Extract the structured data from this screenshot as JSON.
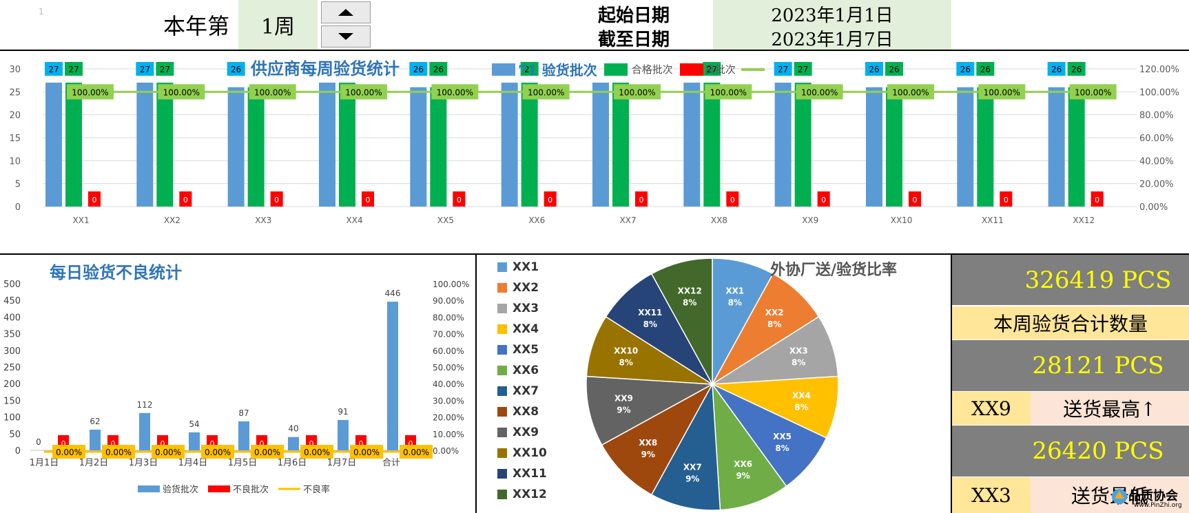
{
  "header": {
    "corner_mark": "1",
    "week_prefix": "本年第",
    "week_value": "1周",
    "start_label": "起始日期",
    "start_value": "2023年1月1日",
    "end_label": "截至日期",
    "end_value": "2023年1月7日",
    "up_icon": "triangle-up",
    "down_icon": "triangle-down"
  },
  "colors": {
    "blue": "#5b9bd5",
    "green": "#00b050",
    "red": "#ff0000",
    "line_green": "#92d050",
    "orange_line": "#ffc000",
    "title_blue": "#2e75b6",
    "kpi_gray": "#7f7f7f",
    "kpi_yellow": "#ffff00",
    "cream": "#ffe699",
    "peach": "#fce4d6"
  },
  "chart_data": [
    {
      "type": "bar",
      "title": "供应商每周验货统计",
      "categories": [
        "XX1",
        "XX2",
        "XX3",
        "XX4",
        "XX5",
        "XX6",
        "XX7",
        "XX8",
        "XX9",
        "XX10",
        "XX11",
        "XX12"
      ],
      "series": [
        {
          "name": "验货批次",
          "type": "bar",
          "values": [
            27,
            27,
            26,
            27,
            26,
            27,
            27,
            27,
            27,
            26,
            26,
            26
          ],
          "labels": [
            "27",
            "27",
            "26",
            "",
            "26",
            "",
            "",
            "",
            "27",
            "26",
            "26",
            "26"
          ]
        },
        {
          "name": "合格批次",
          "type": "bar",
          "values": [
            27,
            27,
            26,
            27,
            26,
            27,
            27,
            27,
            27,
            26,
            26,
            26
          ],
          "labels": [
            "27",
            "27",
            "",
            "",
            "26",
            "27",
            "",
            "27",
            "27",
            "26",
            "26",
            "26"
          ]
        },
        {
          "name": "不良批次",
          "type": "bar",
          "values": [
            0,
            0,
            0,
            0,
            0,
            0,
            0,
            0,
            0,
            0,
            0,
            0
          ],
          "labels": [
            "0",
            "0",
            "0",
            "0",
            "0",
            "0",
            "0",
            "0",
            "0",
            "0",
            "0",
            "0"
          ]
        },
        {
          "name": "",
          "type": "line",
          "axis": "right",
          "values": [
            1,
            1,
            1,
            1,
            1,
            1,
            1,
            1,
            1,
            1,
            1,
            1
          ],
          "labels": [
            "100.00%",
            "100.00%",
            "100.00%",
            "100.00%",
            "100.00%",
            "100.00%",
            "100.00%",
            "100.00%",
            "100.00%",
            "100.00%",
            "100.00%",
            "100.00%"
          ]
        }
      ],
      "legend_text": {
        "blue": "71 验货批次",
        "green": "合格批次",
        "red": "良批次"
      },
      "y_ticks": [
        "30",
        "25",
        "20",
        "15",
        "10",
        "5",
        "0"
      ],
      "ylim": [
        0,
        30
      ],
      "y2_ticks": [
        "120.00%",
        "100.00%",
        "80.00%",
        "60.00%",
        "40.00%",
        "20.00%",
        "0.00%"
      ],
      "y2lim": [
        0,
        1.2
      ],
      "grid": true,
      "legend_position": "top"
    },
    {
      "type": "bar",
      "title": "每日验货不良统计",
      "categories": [
        "1月1日",
        "1月2日",
        "1月3日",
        "1月4日",
        "1月5日",
        "1月6日",
        "1月7日",
        "合计"
      ],
      "series": [
        {
          "name": "验货批次",
          "type": "bar",
          "values": [
            0,
            62,
            112,
            54,
            87,
            40,
            91,
            446
          ]
        },
        {
          "name": "不良批次",
          "type": "bar",
          "values": [
            0,
            0,
            0,
            0,
            0,
            0,
            0,
            0
          ]
        },
        {
          "name": "不良率",
          "type": "line",
          "axis": "right",
          "values": [
            0,
            0,
            0,
            0,
            0,
            0,
            0,
            0
          ],
          "labels": [
            "0.00%",
            "0.00%",
            "0.00%",
            "0.00%",
            "0.00%",
            "0.00%",
            "0.00%",
            "0.00%"
          ]
        }
      ],
      "y_ticks": [
        "500",
        "450",
        "400",
        "350",
        "300",
        "250",
        "200",
        "150",
        "100",
        "50",
        "0"
      ],
      "ylim": [
        0,
        500
      ],
      "y2_ticks": [
        "100.00%",
        "90.00%",
        "80.00%",
        "70.00%",
        "60.00%",
        "50.00%",
        "40.00%",
        "30.00%",
        "20.00%",
        "10.00%",
        "0.00%"
      ],
      "y2lim": [
        0,
        1
      ],
      "grid": false,
      "legend_position": "bottom"
    },
    {
      "type": "pie",
      "title": "外协厂送/验货比率",
      "labels": [
        "XX1",
        "XX2",
        "XX3",
        "XX4",
        "XX5",
        "XX6",
        "XX7",
        "XX8",
        "XX9",
        "XX10",
        "XX11",
        "XX12"
      ],
      "values": [
        8,
        8,
        8,
        8,
        8,
        9,
        9,
        9,
        9,
        8,
        8,
        8
      ],
      "value_labels": [
        "8%",
        "8%",
        "8%",
        "8%",
        "8%",
        "9%",
        "9%",
        "9%",
        "9%",
        "8%",
        "8%",
        "8%"
      ],
      "colors": [
        "#5b9bd5",
        "#ed7d31",
        "#a5a5a5",
        "#ffc000",
        "#4472c4",
        "#70ad47",
        "#255e91",
        "#9e480e",
        "#636363",
        "#997300",
        "#264478",
        "#43682b"
      ],
      "legend_position": "left"
    }
  ],
  "kpi": {
    "total_qty": "326419 PCS",
    "total_label": "本周验货合计数量",
    "max_qty": "28121 PCS",
    "max_supplier": "XX9",
    "max_label": "送货最高↑",
    "min_qty": "26420 PCS",
    "min_supplier": "XX3",
    "min_label": "送货最低"
  },
  "watermark": {
    "name": "品质协会",
    "url": "www.PinZhi.org"
  }
}
